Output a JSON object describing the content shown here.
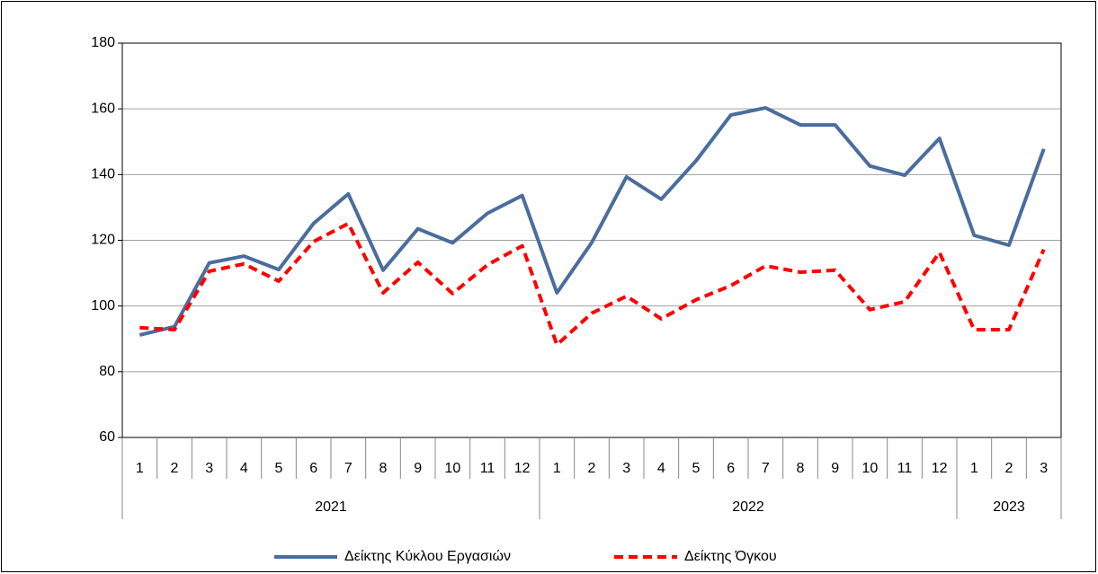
{
  "chart_data": {
    "type": "line",
    "categories": [
      "1",
      "2",
      "3",
      "4",
      "5",
      "6",
      "7",
      "8",
      "9",
      "10",
      "11",
      "12",
      "1",
      "2",
      "3",
      "4",
      "5",
      "6",
      "7",
      "8",
      "9",
      "10",
      "11",
      "12",
      "1",
      "2",
      "3"
    ],
    "category_groups": [
      "2021",
      "2022",
      "2023"
    ],
    "series": [
      {
        "name": "Δείκτης Κύκλου Εργασιών",
        "color": "#4a6d9c",
        "dash": false,
        "values": [
          91.2,
          93.7,
          113.1,
          115.2,
          111.1,
          125.1,
          134.1,
          110.9,
          123.5,
          119.2,
          128.2,
          133.6,
          104.0,
          119.3,
          139.3,
          132.5,
          144.2,
          158.1,
          160.3,
          155.1,
          155.1,
          142.6,
          139.8,
          151.0,
          121.5,
          118.5,
          147.8
        ]
      },
      {
        "name": "Δείκτης Όγκου",
        "color": "#ff0000",
        "dash": true,
        "values": [
          93.4,
          92.8,
          110.6,
          112.8,
          107.6,
          119.6,
          125.1,
          104.0,
          113.3,
          103.8,
          112.5,
          118.3,
          88.2,
          97.8,
          103.0,
          96.1,
          101.9,
          106.2,
          112.2,
          110.3,
          110.9,
          98.9,
          101.3,
          116.3,
          92.8,
          92.8,
          117.2
        ]
      }
    ],
    "ylim": [
      60,
      180
    ],
    "yticks": [
      60,
      80,
      100,
      120,
      140,
      160,
      180
    ],
    "grid": true,
    "legend": "bottom"
  }
}
